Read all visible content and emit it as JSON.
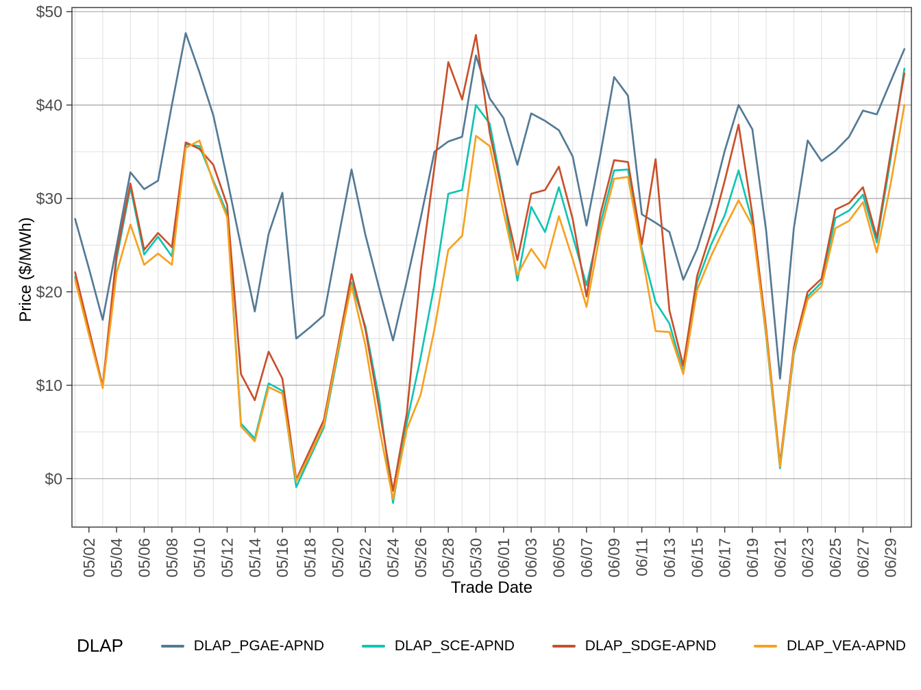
{
  "legend": {
    "title": "DLAP"
  },
  "chart_data": {
    "type": "line",
    "title": "",
    "xlabel": "Trade Date",
    "ylabel": "Price ($/MWh)",
    "legend_position": "bottom",
    "grid": "horizontal majors dark gray at $10 steps, light minors at $5 steps, light vertical minors between 2-day ticks",
    "ylim": [
      -5,
      50.5
    ],
    "yticks": [
      {
        "value": 0,
        "label": "$0"
      },
      {
        "value": 10,
        "label": "$10"
      },
      {
        "value": 20,
        "label": "$20"
      },
      {
        "value": 30,
        "label": "$30"
      },
      {
        "value": 40,
        "label": "$40"
      },
      {
        "value": 50,
        "label": "$50"
      }
    ],
    "x": [
      "05/01",
      "05/02",
      "05/03",
      "05/04",
      "05/05",
      "05/06",
      "05/07",
      "05/08",
      "05/09",
      "05/10",
      "05/11",
      "05/12",
      "05/13",
      "05/14",
      "05/15",
      "05/16",
      "05/17",
      "05/18",
      "05/19",
      "05/20",
      "05/21",
      "05/22",
      "05/23",
      "05/24",
      "05/25",
      "05/26",
      "05/27",
      "05/28",
      "05/29",
      "05/30",
      "05/31",
      "06/01",
      "06/02",
      "06/03",
      "06/04",
      "06/05",
      "06/06",
      "06/07",
      "06/08",
      "06/09",
      "06/10",
      "06/11",
      "06/12",
      "06/13",
      "06/14",
      "06/15",
      "06/16",
      "06/17",
      "06/18",
      "06/19",
      "06/20",
      "06/21",
      "06/22",
      "06/23",
      "06/24",
      "06/25",
      "06/26",
      "06/27",
      "06/28",
      "06/29",
      "06/30"
    ],
    "xtick_every_days": 2,
    "series": [
      {
        "name": "DLAP_PGAE-APND",
        "color": "#537A96",
        "values": [
          27.8,
          22.5,
          17.0,
          24.9,
          32.8,
          31.0,
          31.9,
          40.0,
          47.7,
          43.5,
          38.9,
          32.1,
          24.9,
          17.9,
          26.2,
          30.6,
          15.0,
          16.2,
          17.5,
          25.4,
          33.1,
          26.1,
          20.4,
          14.8,
          21.2,
          27.9,
          35.0,
          36.1,
          36.6,
          45.3,
          40.7,
          38.6,
          33.6,
          39.1,
          38.3,
          37.3,
          34.5,
          27.1,
          34.7,
          43.0,
          41.0,
          28.3,
          27.4,
          26.4,
          21.3,
          24.6,
          29.3,
          35.1,
          40.0,
          37.4,
          26.5,
          10.7,
          26.8,
          36.2,
          34.0,
          35.1,
          36.6,
          39.4,
          39.0,
          42.5,
          46.0
        ]
      },
      {
        "name": "DLAP_SCE-APND",
        "color": "#0FC5B2",
        "values": [
          21.6,
          15.6,
          9.9,
          23.5,
          31.2,
          24.0,
          25.9,
          23.8,
          35.8,
          35.6,
          31.9,
          28.4,
          5.9,
          4.3,
          10.2,
          9.4,
          -0.9,
          2.3,
          5.5,
          13.2,
          21.0,
          16.3,
          8.5,
          -2.6,
          6.0,
          13.0,
          20.8,
          30.5,
          30.9,
          40.0,
          38.0,
          30.2,
          21.2,
          29.1,
          26.4,
          31.2,
          26.0,
          20.7,
          27.3,
          33.0,
          33.1,
          24.6,
          18.9,
          16.6,
          11.4,
          21.0,
          25.0,
          28.2,
          33.0,
          27.5,
          15.2,
          1.1,
          13.3,
          19.5,
          21.0,
          27.9,
          28.7,
          30.4,
          25.3,
          34.2,
          43.9
        ]
      },
      {
        "name": "DLAP_SDGE-APND",
        "color": "#C8502B",
        "values": [
          22.1,
          16.0,
          9.9,
          24.0,
          31.6,
          24.5,
          26.3,
          24.8,
          36.0,
          35.3,
          33.6,
          29.3,
          11.2,
          8.4,
          13.6,
          10.7,
          -0.1,
          3.1,
          6.3,
          14.0,
          21.9,
          16.0,
          7.5,
          -1.3,
          7.0,
          22.2,
          33.4,
          44.6,
          40.6,
          47.5,
          37.0,
          30.0,
          23.4,
          30.5,
          30.9,
          33.4,
          27.8,
          19.5,
          28.3,
          34.1,
          33.9,
          25.1,
          34.2,
          18.0,
          12.1,
          21.7,
          26.3,
          31.9,
          37.9,
          28.3,
          16.0,
          1.6,
          14.0,
          20.0,
          21.4,
          28.8,
          29.5,
          31.2,
          25.8,
          34.8,
          43.4
        ]
      },
      {
        "name": "DLAP_VEA-APND",
        "color": "#F7A11E",
        "values": [
          21.3,
          15.4,
          9.7,
          22.0,
          27.2,
          22.9,
          24.1,
          22.9,
          35.4,
          36.2,
          31.7,
          28.0,
          5.6,
          4.0,
          9.8,
          9.1,
          -0.3,
          2.6,
          5.8,
          13.6,
          20.7,
          14.3,
          5.5,
          -2.2,
          5.3,
          9.0,
          16.0,
          24.5,
          26.0,
          36.7,
          35.6,
          28.5,
          21.8,
          24.6,
          22.5,
          28.1,
          23.5,
          18.4,
          26.4,
          32.1,
          32.3,
          24.2,
          15.8,
          15.7,
          11.2,
          20.2,
          23.8,
          26.9,
          29.8,
          27.1,
          15.5,
          1.3,
          13.6,
          19.2,
          20.6,
          26.8,
          27.6,
          29.6,
          24.2,
          31.5,
          40.0
        ]
      }
    ]
  }
}
